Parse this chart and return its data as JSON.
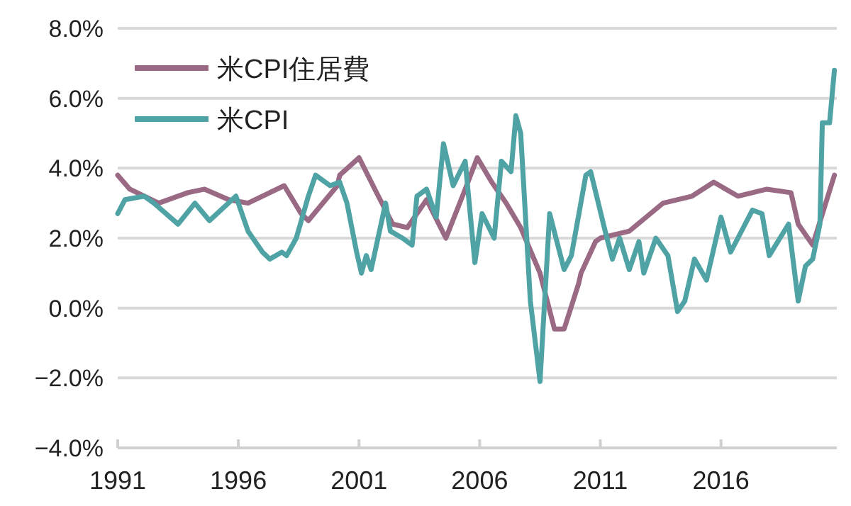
{
  "chart_data": {
    "type": "line",
    "series": [
      {
        "name": "米CPI住居費",
        "color": "#9a6a85",
        "x": [
          1991.0,
          1991.5,
          1992.7,
          1993.9,
          1994.6,
          1995.6,
          1996.4,
          1997.9,
          1998.6,
          1998.9,
          2000.1,
          2000.2,
          2001.0,
          2001.8,
          2002.4,
          2003.0,
          2003.8,
          2004.6,
          2005.4,
          2005.9,
          2006.5,
          2007.1,
          2007.7,
          2008.5,
          2009.1,
          2009.5,
          2010.1,
          2010.2,
          2010.8,
          2011.0,
          2012.2,
          2013.6,
          2014.8,
          2015.7,
          2016.7,
          2017.9,
          2018.9,
          2019.2,
          2019.8,
          2020.7
        ],
        "values": [
          3.8,
          3.4,
          3.0,
          3.3,
          3.4,
          3.1,
          3.0,
          3.5,
          2.7,
          2.5,
          3.5,
          3.8,
          4.3,
          3.2,
          2.4,
          2.3,
          3.1,
          2.0,
          3.4,
          4.3,
          3.6,
          3.0,
          2.3,
          1.0,
          -0.6,
          -0.6,
          0.7,
          1.0,
          1.9,
          2.0,
          2.2,
          3.0,
          3.2,
          3.6,
          3.2,
          3.4,
          3.3,
          2.4,
          1.8,
          3.8
        ]
      },
      {
        "name": "米CPI",
        "color": "#4fa3a5",
        "x": [
          1991.0,
          1991.3,
          1992.1,
          1992.5,
          1993.5,
          1994.2,
          1994.8,
          1995.9,
          1996.4,
          1997.0,
          1997.3,
          1997.8,
          1998.0,
          1998.4,
          1998.9,
          1999.2,
          1999.8,
          2000.2,
          2000.5,
          2000.9,
          2001.1,
          2001.3,
          2001.5,
          2002.1,
          2002.3,
          2002.8,
          2003.2,
          2003.4,
          2003.8,
          2004.2,
          2004.5,
          2004.9,
          2005.4,
          2005.8,
          2006.1,
          2006.6,
          2006.9,
          2007.3,
          2007.5,
          2007.7,
          2008.1,
          2008.5,
          2008.9,
          2009.5,
          2009.8,
          2010.4,
          2010.6,
          2011.2,
          2011.5,
          2011.8,
          2012.2,
          2012.6,
          2012.8,
          2013.3,
          2013.8,
          2014.2,
          2014.5,
          2014.9,
          2015.4,
          2016.0,
          2016.4,
          2017.3,
          2017.7,
          2018.0,
          2018.8,
          2019.2,
          2019.5,
          2019.8,
          2020.1,
          2020.2,
          2020.5,
          2020.7
        ],
        "values": [
          2.7,
          3.1,
          3.2,
          3.0,
          2.4,
          3.0,
          2.5,
          3.2,
          2.2,
          1.6,
          1.4,
          1.6,
          1.5,
          2.0,
          3.2,
          3.8,
          3.5,
          3.6,
          3.0,
          1.6,
          1.0,
          1.5,
          1.1,
          3.0,
          2.2,
          2.0,
          1.8,
          3.2,
          3.4,
          2.6,
          4.7,
          3.5,
          4.2,
          1.3,
          2.7,
          2.0,
          4.2,
          3.9,
          5.5,
          5.0,
          0.2,
          -2.1,
          2.7,
          1.1,
          1.5,
          3.8,
          3.9,
          2.2,
          1.4,
          2.0,
          1.1,
          1.9,
          1.0,
          2.0,
          1.5,
          -0.1,
          0.2,
          1.4,
          0.8,
          2.6,
          1.6,
          2.8,
          2.7,
          1.5,
          2.4,
          0.2,
          1.2,
          1.4,
          2.4,
          5.3,
          5.3,
          6.8
        ]
      }
    ],
    "xlim": [
      1991,
      2020.8
    ],
    "xticks": [
      1991,
      1996,
      2001,
      2006,
      2011,
      2016
    ],
    "ylim": [
      -4,
      8
    ],
    "yticks": [
      {
        "value": -4,
        "label": "−4.0%"
      },
      {
        "value": -2,
        "label": "−2.0%"
      },
      {
        "value": 0,
        "label": "0.0%"
      },
      {
        "value": 2,
        "label": "2.0%"
      },
      {
        "value": 4,
        "label": "4.0%"
      },
      {
        "value": 6,
        "label": "6.0%"
      },
      {
        "value": 8,
        "label": "8.0%"
      }
    ],
    "grid": "y",
    "legend": "top left",
    "marker": "none",
    "line_style": "solid"
  }
}
